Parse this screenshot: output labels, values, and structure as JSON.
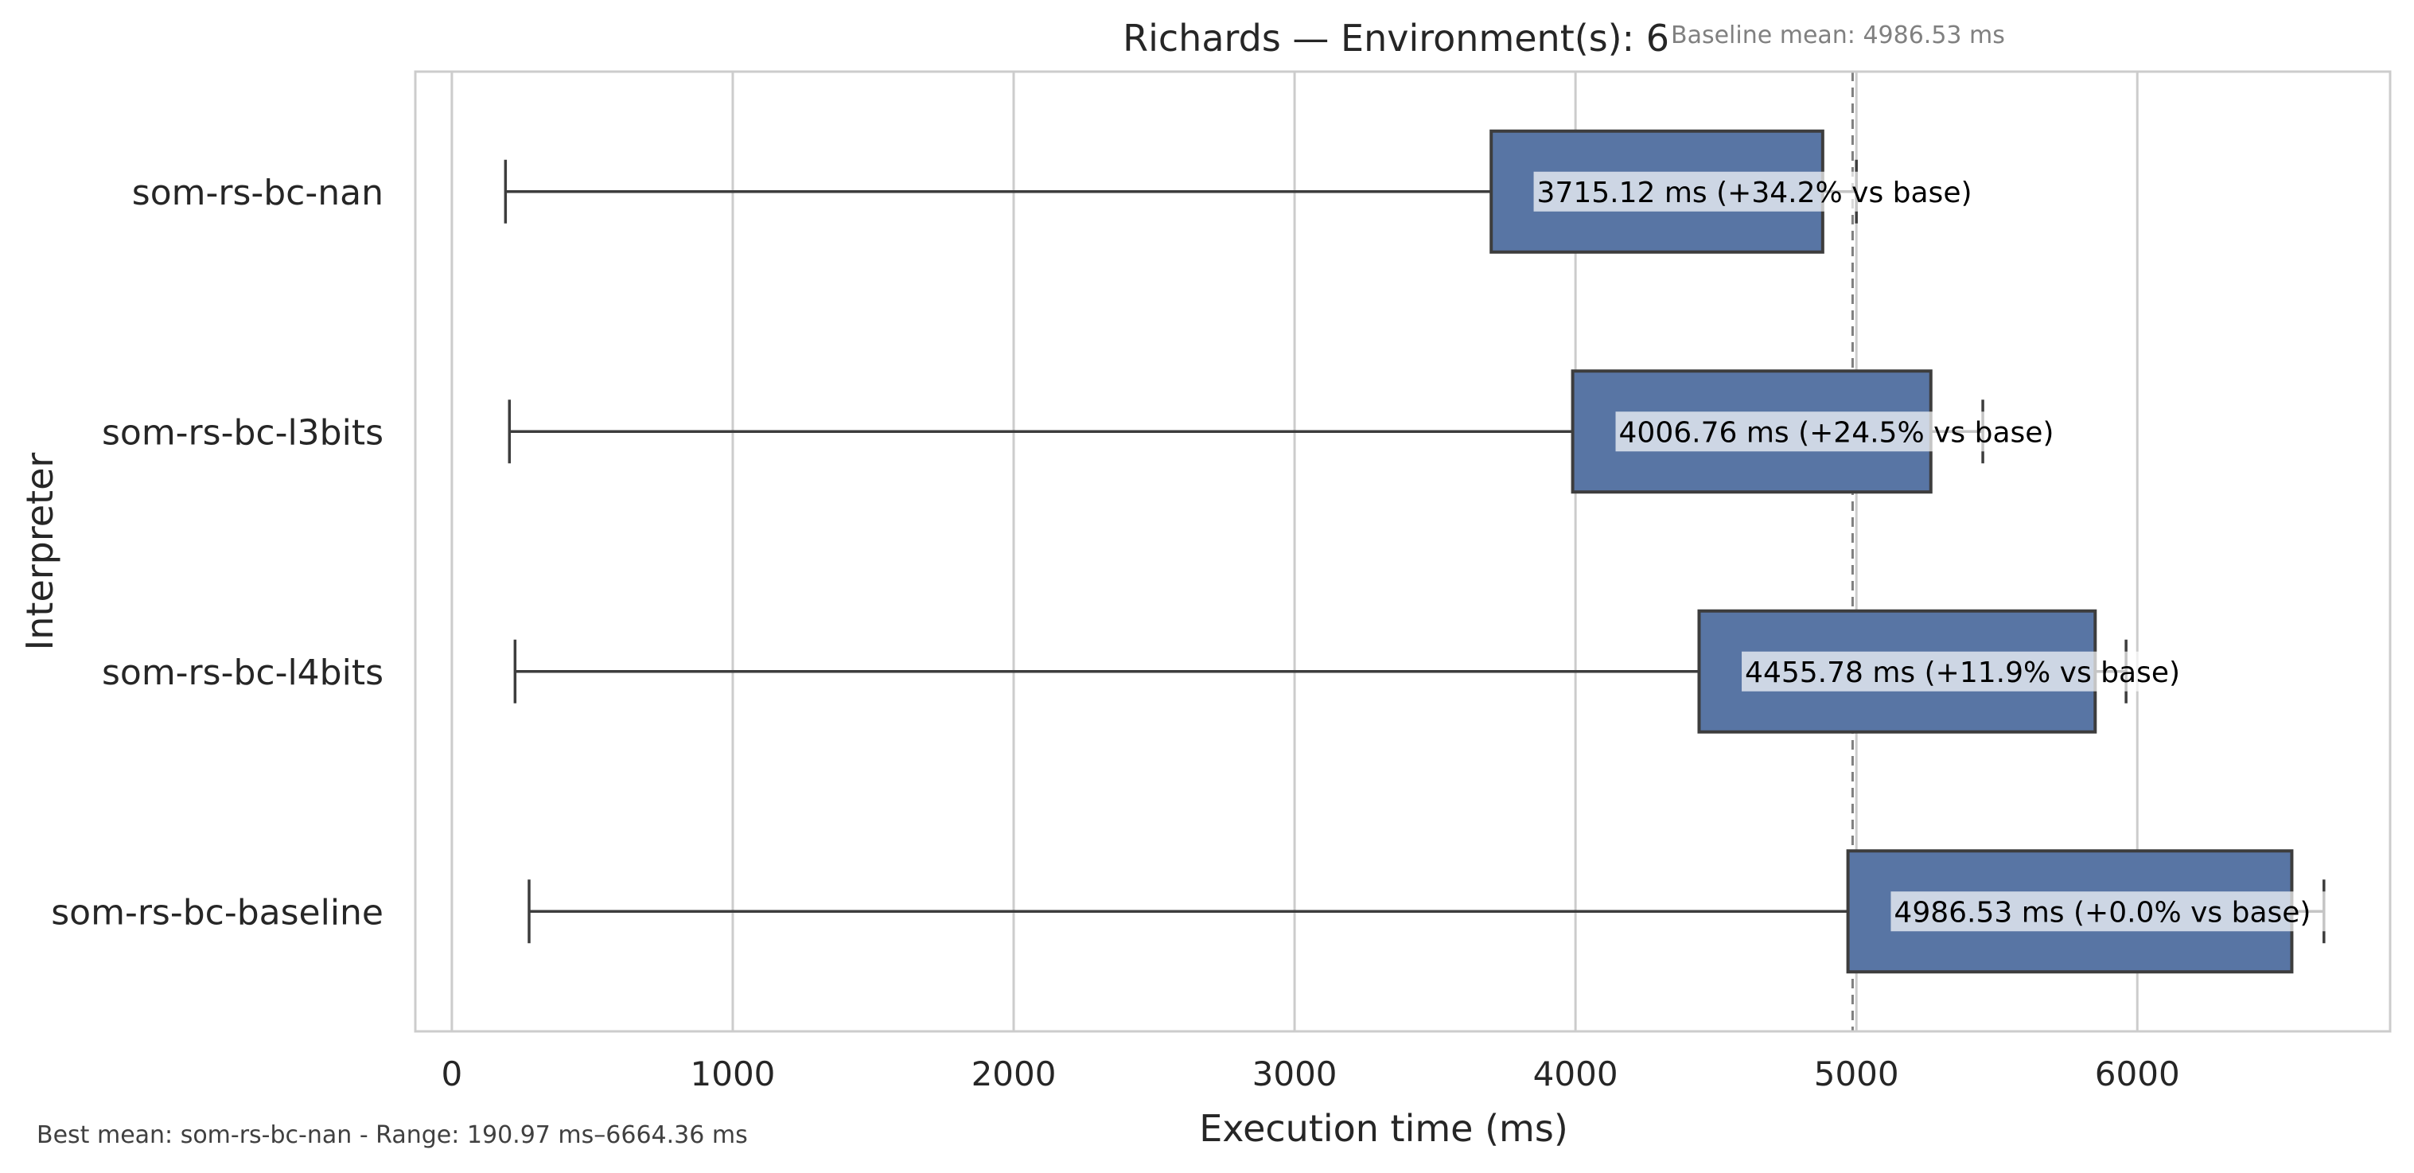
{
  "chart_data": {
    "type": "boxplot",
    "orientation": "horizontal",
    "title": "Richards — Environment(s): 6",
    "xlabel": "Execution time (ms)",
    "ylabel": "Interpreter",
    "xlim": [
      -130,
      6900
    ],
    "xticks": [
      0,
      1000,
      2000,
      3000,
      4000,
      5000,
      6000
    ],
    "grid": true,
    "box_color": "#5875a4",
    "baseline": {
      "value": 4986.53,
      "label": "Baseline mean: 4986.53 ms"
    },
    "categories": [
      "som-rs-bc-nan",
      "som-rs-bc-l3bits",
      "som-rs-bc-l4bits",
      "som-rs-bc-baseline"
    ],
    "series": [
      {
        "category": "som-rs-bc-nan",
        "whisker_low": 190.97,
        "q1": 3700,
        "q3": 4880,
        "whisker_high": 5000,
        "mean": 3715.12,
        "label": "3715.12 ms  (+34.2% vs base)"
      },
      {
        "category": "som-rs-bc-l3bits",
        "whisker_low": 205,
        "q1": 3990,
        "q3": 5265,
        "whisker_high": 5450,
        "mean": 4006.76,
        "label": "4006.76 ms  (+24.5% vs base)"
      },
      {
        "category": "som-rs-bc-l4bits",
        "whisker_low": 225,
        "q1": 4440,
        "q3": 5850,
        "whisker_high": 5960,
        "mean": 4455.78,
        "label": "4455.78 ms  (+11.9% vs base)"
      },
      {
        "category": "som-rs-bc-baseline",
        "whisker_low": 275,
        "q1": 4970,
        "q3": 6550,
        "whisker_high": 6664.36,
        "mean": 4986.53,
        "label": "4986.53 ms  (+0.0% vs base)"
      }
    ],
    "footer": "Best mean: som-rs-bc-nan - Range: 190.97 ms–6664.36 ms"
  }
}
